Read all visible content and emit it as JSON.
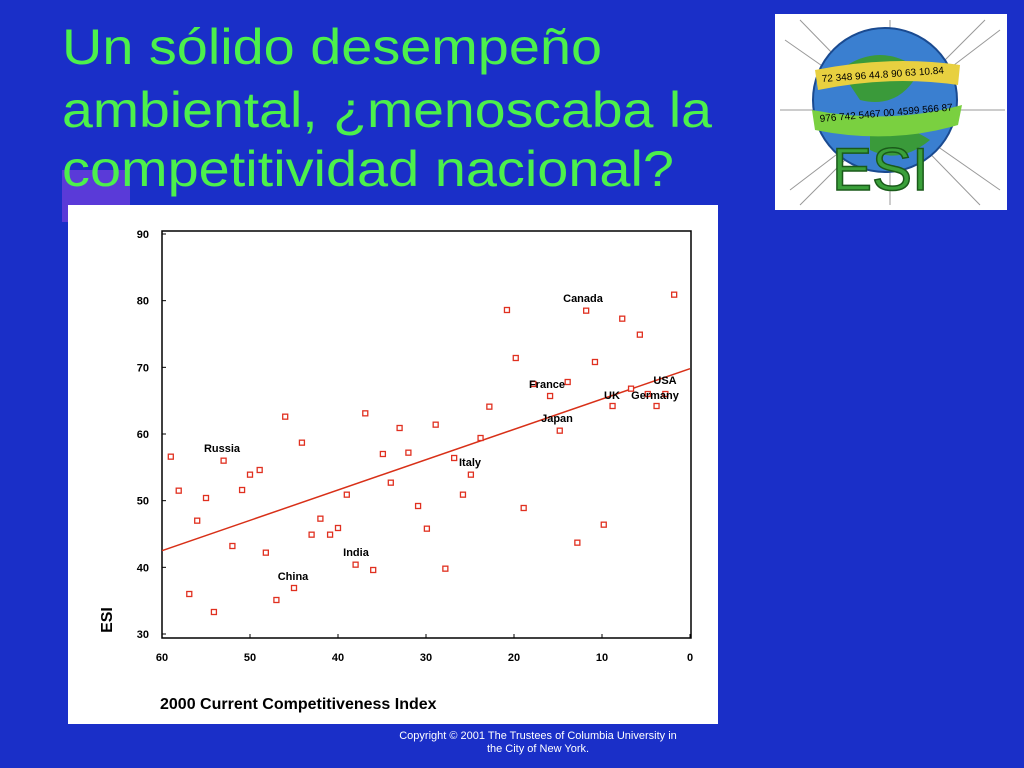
{
  "title_lines": [
    "Un sólido desempeño",
    "ambiental, ¿menoscaba la",
    "competitividad nacional?"
  ],
  "logo": {
    "text": "ESI",
    "numbers_top": "72 348 96 44.8 90 63 10.84",
    "numbers_bottom": "976 742 5467 00 4599 566 87"
  },
  "copyright_lines": [
    "Copyright © 2001 The Trustees of Columbia University in",
    "the City of New York."
  ],
  "chart_data": {
    "type": "scatter",
    "xlabel": "2000 Current Competitiveness Index",
    "ylabel": "ESI",
    "xlim": [
      60,
      0
    ],
    "ylim": [
      30,
      90
    ],
    "xticks": [
      60,
      50,
      40,
      30,
      20,
      10,
      0
    ],
    "yticks": [
      30,
      40,
      50,
      60,
      70,
      80,
      90
    ],
    "color": "#e03020",
    "x": [
      59.0,
      58.1,
      56.9,
      56.0,
      55.0,
      54.1,
      53.0,
      52.0,
      50.9,
      50.0,
      48.9,
      48.2,
      47.0,
      46.0,
      45.0,
      44.1,
      43.0,
      42.0,
      40.9,
      40.0,
      39.0,
      38.0,
      36.9,
      36.0,
      34.9,
      34.0,
      33.0,
      32.0,
      30.9,
      29.9,
      28.9,
      27.8,
      26.8,
      25.8,
      24.9,
      23.8,
      22.8,
      20.8,
      19.8,
      18.9,
      17.8,
      15.9,
      14.8,
      13.9,
      12.8,
      11.8,
      10.8,
      9.8,
      8.8,
      7.7,
      6.7,
      5.7,
      4.8,
      3.8,
      2.8,
      1.8
    ],
    "values": [
      56.6,
      51.5,
      36.0,
      47.0,
      50.4,
      33.3,
      56.0,
      43.2,
      51.6,
      53.9,
      54.6,
      42.2,
      35.1,
      62.6,
      36.9,
      58.7,
      44.9,
      47.3,
      44.9,
      45.9,
      50.9,
      40.4,
      63.1,
      39.6,
      57.0,
      52.7,
      60.9,
      57.2,
      49.2,
      45.8,
      61.4,
      39.8,
      56.4,
      50.9,
      53.9,
      59.4,
      64.1,
      78.6,
      71.4,
      48.9,
      67.5,
      65.7,
      60.5,
      67.8,
      43.7,
      78.5,
      70.8,
      46.4,
      64.2,
      77.3,
      66.8,
      74.9,
      66.0,
      64.2,
      66.0,
      80.9
    ],
    "trend_line": {
      "color": "#d83018",
      "x": [
        60,
        0
      ],
      "values": [
        42.5,
        69.8
      ]
    },
    "annotations": [
      "Canada",
      "France",
      "USA",
      "UK",
      "Germany",
      "Japan",
      "Russia",
      "Italy",
      "India",
      "China"
    ]
  }
}
